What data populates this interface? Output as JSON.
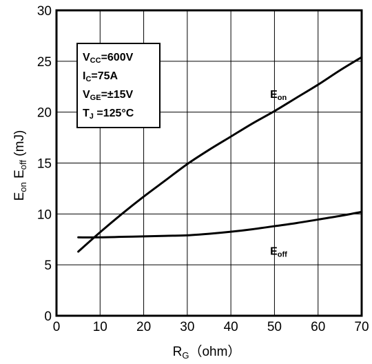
{
  "chart_data": {
    "type": "line",
    "xlabel": {
      "main": "R",
      "sub": "G",
      "unit": "（ohm）"
    },
    "ylabel": {
      "p1": "E",
      "p1sub": "on",
      "p2": " E",
      "p2sub": "off",
      "unit": " (mJ)"
    },
    "xlim": [
      0,
      70
    ],
    "ylim": [
      0,
      30
    ],
    "xticks": [
      0,
      10,
      20,
      30,
      40,
      50,
      60,
      70
    ],
    "yticks": [
      0,
      5,
      10,
      15,
      20,
      25,
      30
    ],
    "grid": true,
    "series": [
      {
        "name": "E_on",
        "label_main": "E",
        "label_sub": "on",
        "label_pos": [
          49,
          21.4
        ],
        "x": [
          5,
          10,
          15,
          20,
          25,
          30,
          35,
          40,
          45,
          50,
          55,
          60,
          65,
          70
        ],
        "y": [
          6.3,
          8.2,
          10.0,
          11.7,
          13.3,
          14.9,
          16.3,
          17.6,
          18.9,
          20.1,
          21.4,
          22.7,
          24.1,
          25.4
        ]
      },
      {
        "name": "E_off",
        "label_main": "E",
        "label_sub": "off",
        "label_pos": [
          49,
          6.0
        ],
        "x": [
          5,
          10,
          15,
          20,
          25,
          30,
          35,
          40,
          45,
          50,
          55,
          60,
          65,
          70
        ],
        "y": [
          7.7,
          7.7,
          7.75,
          7.8,
          7.85,
          7.9,
          8.05,
          8.25,
          8.5,
          8.8,
          9.1,
          9.45,
          9.8,
          10.2
        ]
      }
    ],
    "conditions": [
      {
        "main": "V",
        "sub": "CC",
        "value": "=600V"
      },
      {
        "main": "I",
        "sub": "C",
        "value": "=75A"
      },
      {
        "main": "V",
        "sub": "GE",
        "value": "=±15V"
      },
      {
        "main": "T",
        "sub": "J",
        "value": " =125°C"
      }
    ]
  }
}
